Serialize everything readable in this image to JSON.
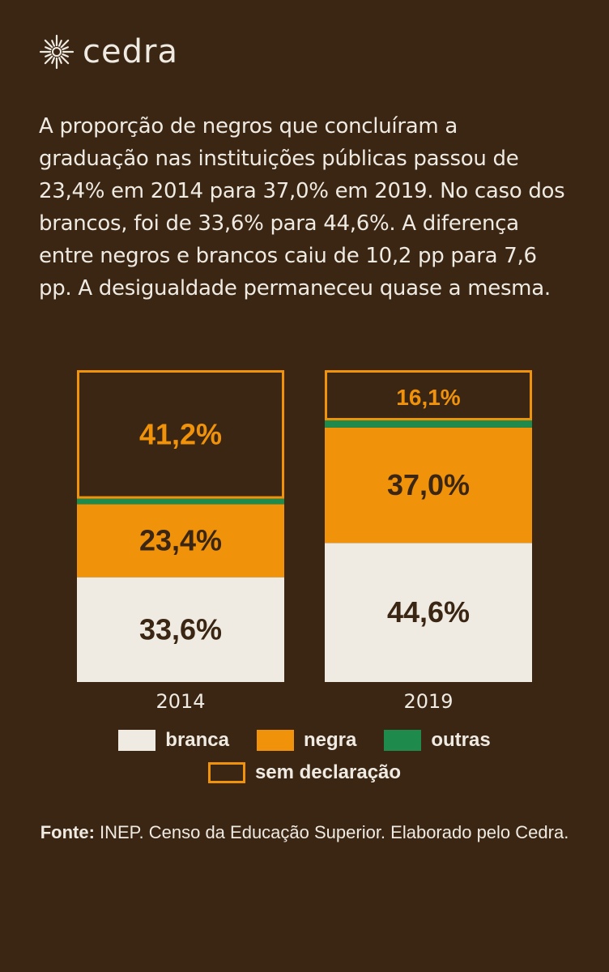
{
  "brand": {
    "name": "cedra",
    "logo_icon": "sun-burst-icon"
  },
  "intro_text": "A proporção de negros que concluíram a graduação nas instituições públicas passou de 23,4% em 2014 para 37,0% em 2019. No caso dos brancos, foi de 33,6% para 44,6%. A diferença entre negros e brancos caiu de 10,2 pp para 7,6 pp. A desigualdade permaneceu quase a mesma.",
  "colors": {
    "background": "#3a2613",
    "branca": "#efeae2",
    "negra": "#f0920a",
    "outras": "#1e8a4c",
    "sem_declaracao_border": "#f0920a",
    "label_dark": "#3a2613"
  },
  "chart_data": {
    "type": "bar",
    "stacked": true,
    "categories": [
      "2014",
      "2019"
    ],
    "series": [
      {
        "name": "branca",
        "values": [
          33.6,
          44.6
        ],
        "labels": [
          "33,6%",
          "44,6%"
        ]
      },
      {
        "name": "negra",
        "values": [
          23.4,
          37.0
        ],
        "labels": [
          "23,4%",
          "37,0%"
        ]
      },
      {
        "name": "outras",
        "values": [
          1.8,
          2.3
        ],
        "labels": [
          "",
          ""
        ]
      },
      {
        "name": "sem declaração",
        "values": [
          41.2,
          16.1
        ],
        "labels": [
          "41,2%",
          "16,1%"
        ]
      }
    ],
    "ylim": [
      0,
      100
    ],
    "legend_position": "bottom"
  },
  "legend": {
    "items": [
      {
        "label": "branca",
        "key": "branca"
      },
      {
        "label": "negra",
        "key": "negra"
      },
      {
        "label": "outras",
        "key": "outras"
      },
      {
        "label": "sem declaração",
        "key": "sem_declaracao"
      }
    ]
  },
  "source": {
    "prefix": "Fonte:",
    "text": " INEP. Censo da Educação Superior. Elaborado pelo Cedra."
  }
}
